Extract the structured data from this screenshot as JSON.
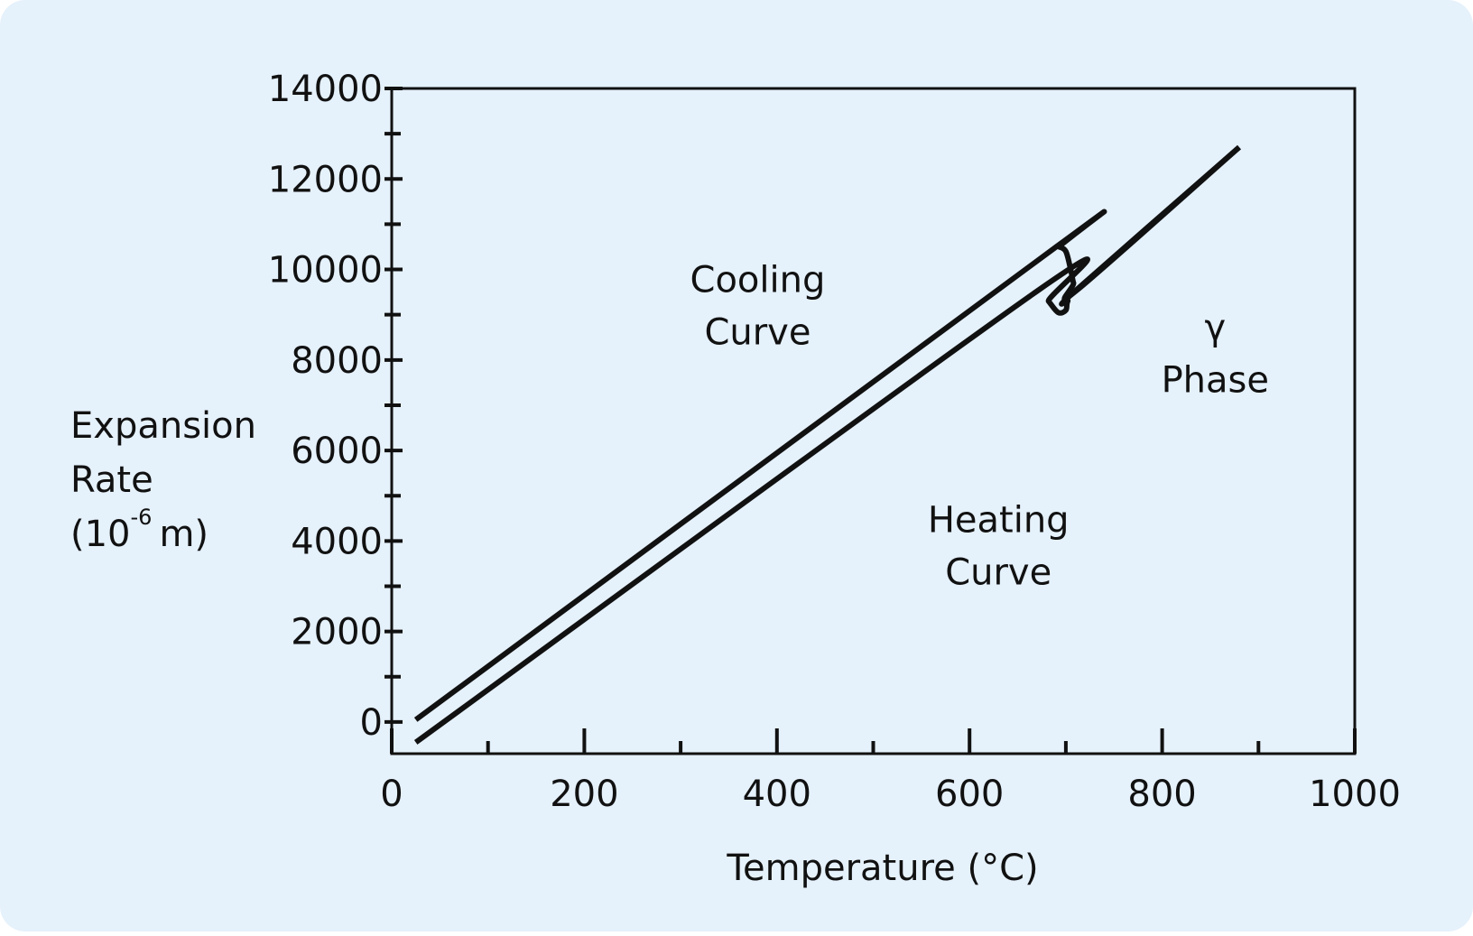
{
  "colors": {
    "background": "#e5f1fb",
    "line": "#111111"
  },
  "chart_data": {
    "type": "line",
    "xlabel": "Temperature (°C)",
    "ylabel_lines": [
      "Expansion",
      "Rate"
    ],
    "ylabel_unit_prefix": "(10",
    "ylabel_unit_exponent": "-6",
    "ylabel_unit_suffix": "m)",
    "xlim": [
      0,
      1000
    ],
    "ylim": [
      -700,
      14000
    ],
    "xticks": [
      0,
      200,
      400,
      600,
      800,
      1000
    ],
    "xticks_minor": [
      100,
      300,
      500,
      700,
      900
    ],
    "yticks": [
      0,
      2000,
      4000,
      6000,
      8000,
      10000,
      12000,
      14000
    ],
    "yticks_minor": [
      1000,
      3000,
      5000,
      7000,
      9000,
      11000,
      13000
    ],
    "grid": false,
    "series": [
      {
        "x": [
          25,
          672,
          682,
          692,
          700,
          702,
          711,
          880
        ],
        "y": [
          -450,
          9550,
          9300,
          9050,
          9100,
          9300,
          9550,
          12700
        ]
      },
      {
        "x": [
          25,
          690,
          693,
          700,
          705,
          708,
          712,
          880
        ],
        "y": [
          50,
          10500,
          10500,
          10400,
          10000,
          9700,
          9550,
          12700
        ]
      }
    ],
    "annotations": [
      {
        "lines": [
          "Cooling",
          "Curve"
        ],
        "x": 380,
        "y": 9500
      },
      {
        "lines": [
          "Heating",
          "Curve"
        ],
        "x": 630,
        "y": 4200
      },
      {
        "lines": [
          "γ",
          "Phase"
        ],
        "x": 855,
        "y": 8450
      }
    ]
  }
}
